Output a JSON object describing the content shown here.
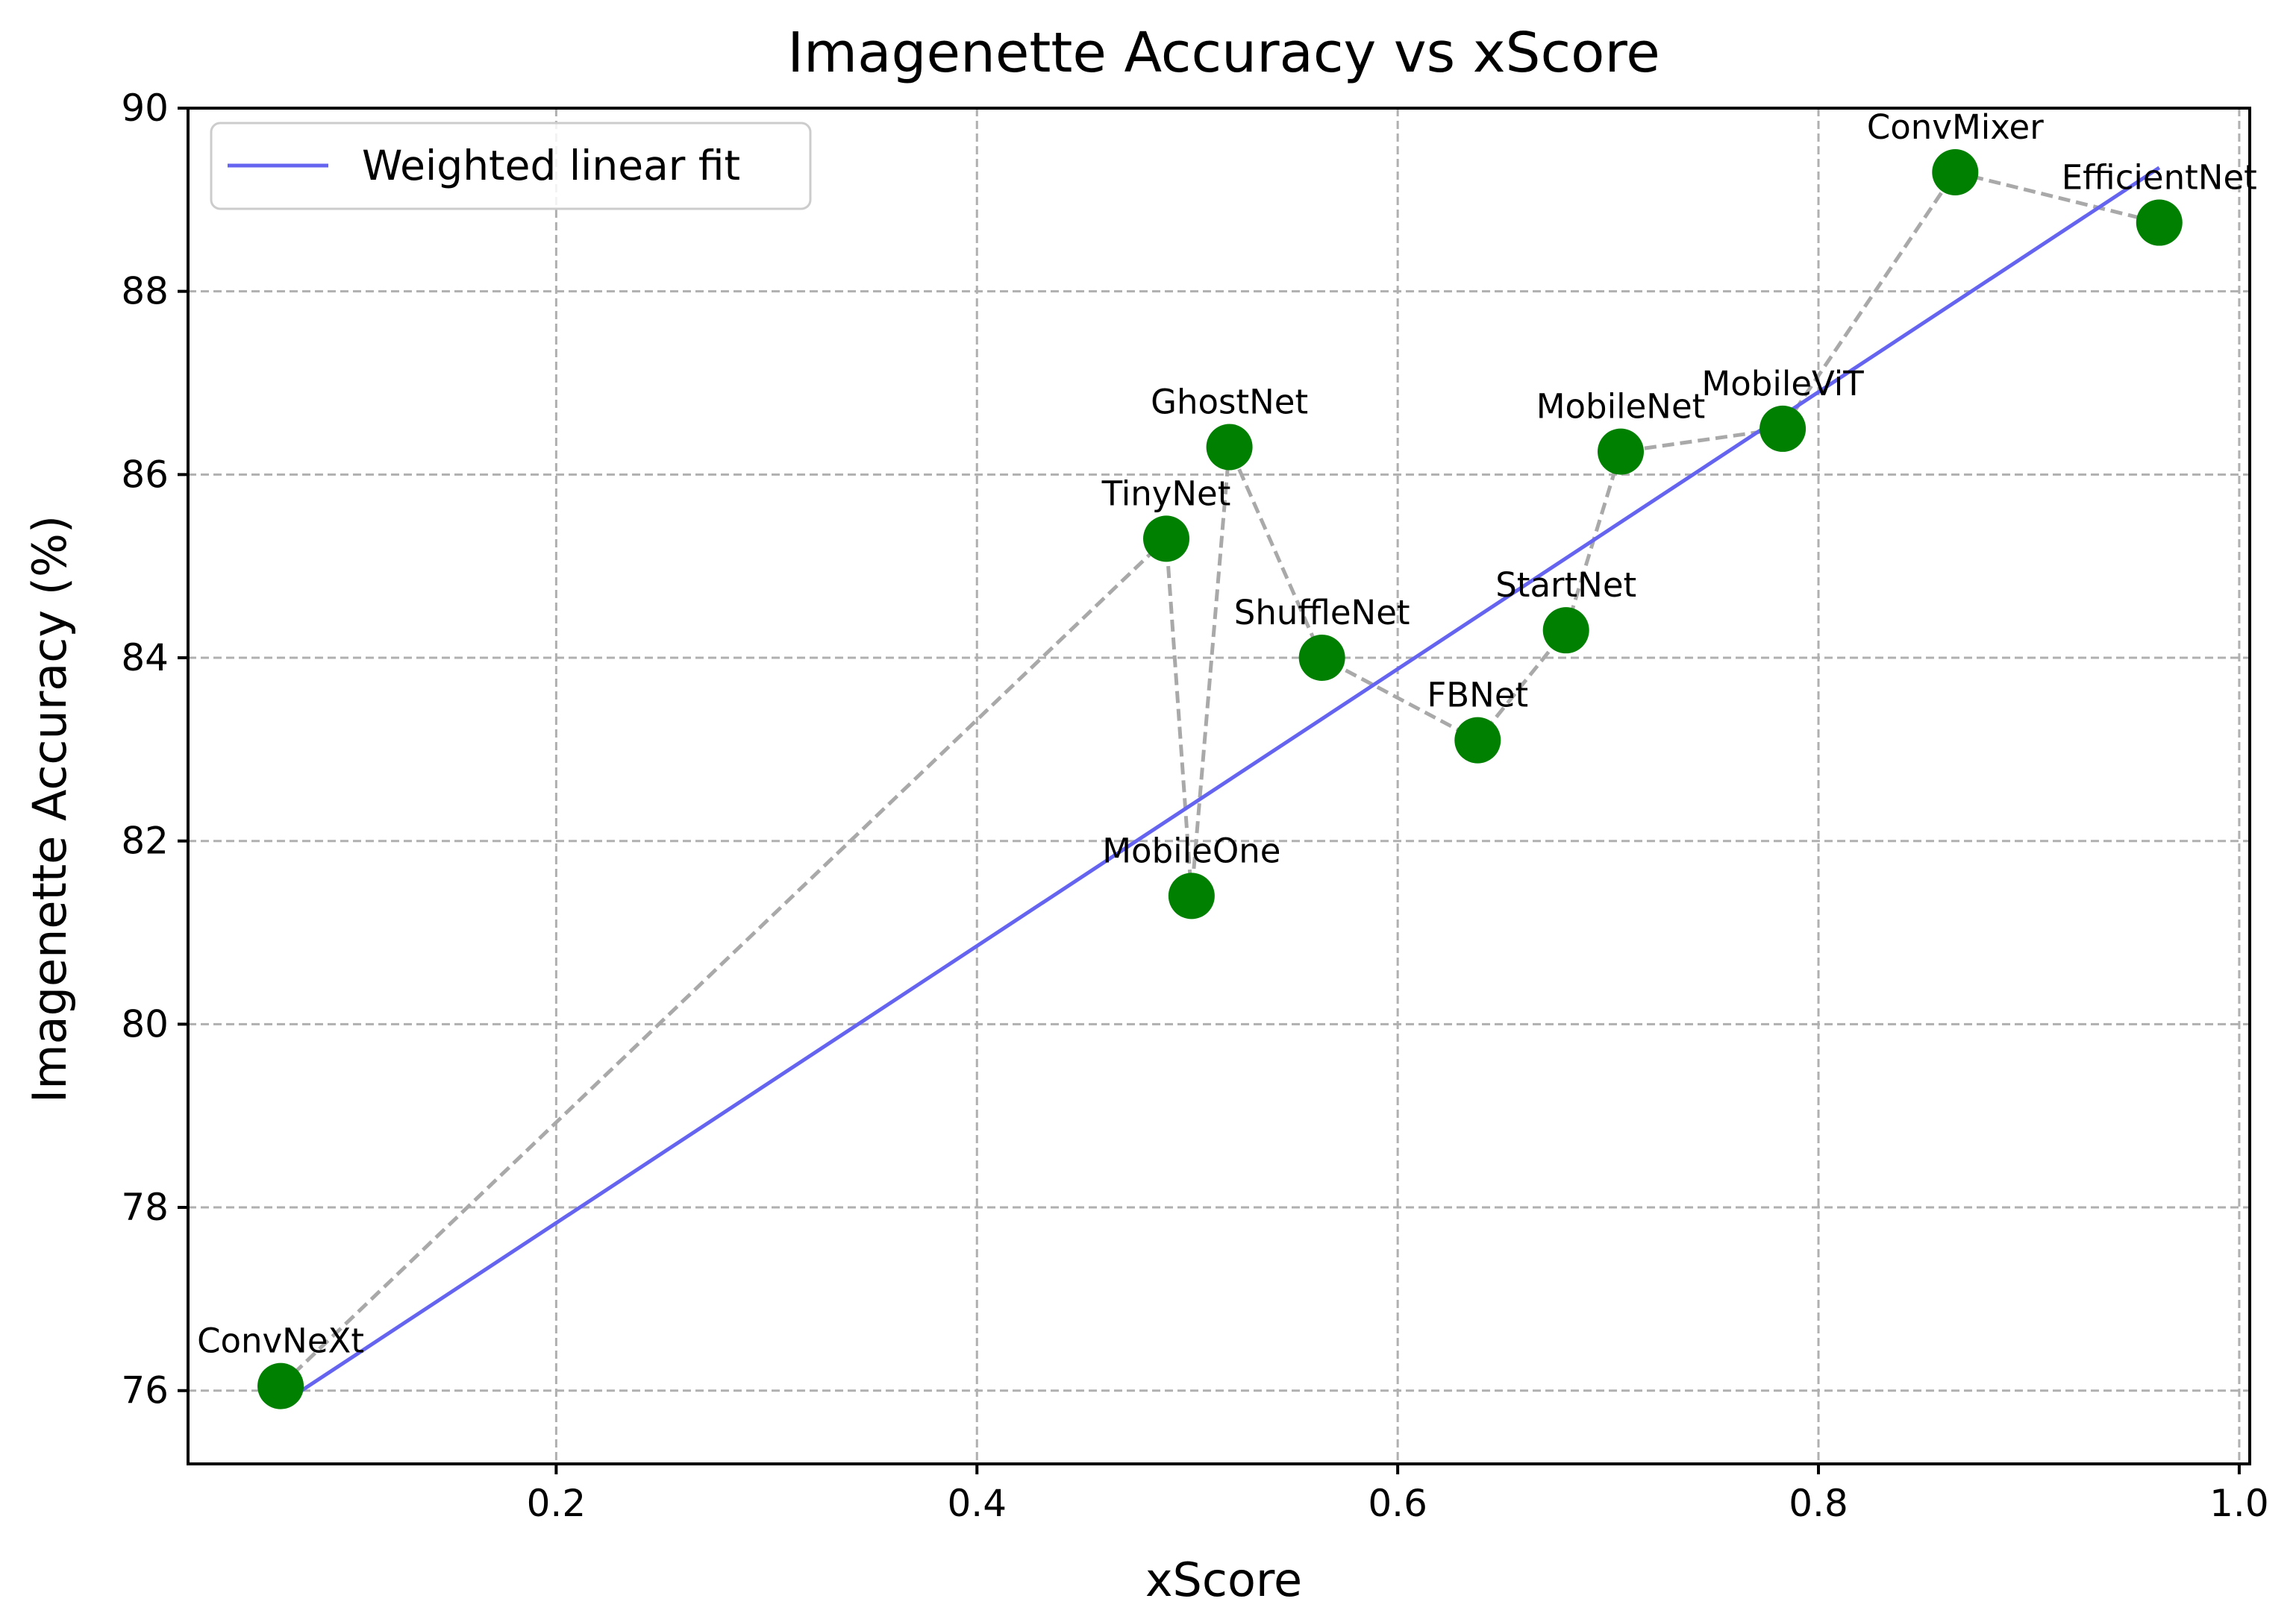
{
  "chart_data": {
    "type": "scatter",
    "title": "Imagenette Accuracy vs xScore",
    "xlabel": "xScore",
    "ylabel": "Imagenette Accuracy (%)",
    "xlim": [
      0.025,
      1.005
    ],
    "ylim": [
      75.2,
      90.0
    ],
    "xticks": [
      0.2,
      0.4,
      0.6,
      0.8,
      1.0
    ],
    "xtick_labels": [
      "0.2",
      "0.4",
      "0.6",
      "0.8",
      "1.0"
    ],
    "yticks": [
      76,
      78,
      80,
      82,
      84,
      86,
      88,
      90
    ],
    "ytick_labels": [
      "76",
      "78",
      "80",
      "82",
      "84",
      "86",
      "88",
      "90"
    ],
    "grid": true,
    "legend": {
      "placement": "top-left",
      "entries": [
        "Weighted linear fit"
      ]
    },
    "points": [
      {
        "name": "ConvNeXt",
        "x": 0.069,
        "y": 76.05
      },
      {
        "name": "TinyNet",
        "x": 0.49,
        "y": 85.3
      },
      {
        "name": "MobileOne",
        "x": 0.502,
        "y": 81.4
      },
      {
        "name": "GhostNet",
        "x": 0.52,
        "y": 86.3
      },
      {
        "name": "ShuffleNet",
        "x": 0.564,
        "y": 84.0
      },
      {
        "name": "FBNet",
        "x": 0.638,
        "y": 83.1
      },
      {
        "name": "StartNet",
        "x": 0.68,
        "y": 84.3
      },
      {
        "name": "MobileNet",
        "x": 0.706,
        "y": 86.25
      },
      {
        "name": "MobileViT",
        "x": 0.783,
        "y": 86.5
      },
      {
        "name": "ConvMixer",
        "x": 0.865,
        "y": 89.3
      },
      {
        "name": "EfficientNet",
        "x": 0.962,
        "y": 88.75
      }
    ],
    "fit_line": {
      "name": "Weighted linear fit",
      "x": [
        0.069,
        0.962
      ],
      "y": [
        75.85,
        89.35
      ]
    },
    "colors": {
      "points": "#008000",
      "connector": "#a9a9a9",
      "fit": "#6464f0",
      "grid": "#b0b0b0"
    }
  }
}
